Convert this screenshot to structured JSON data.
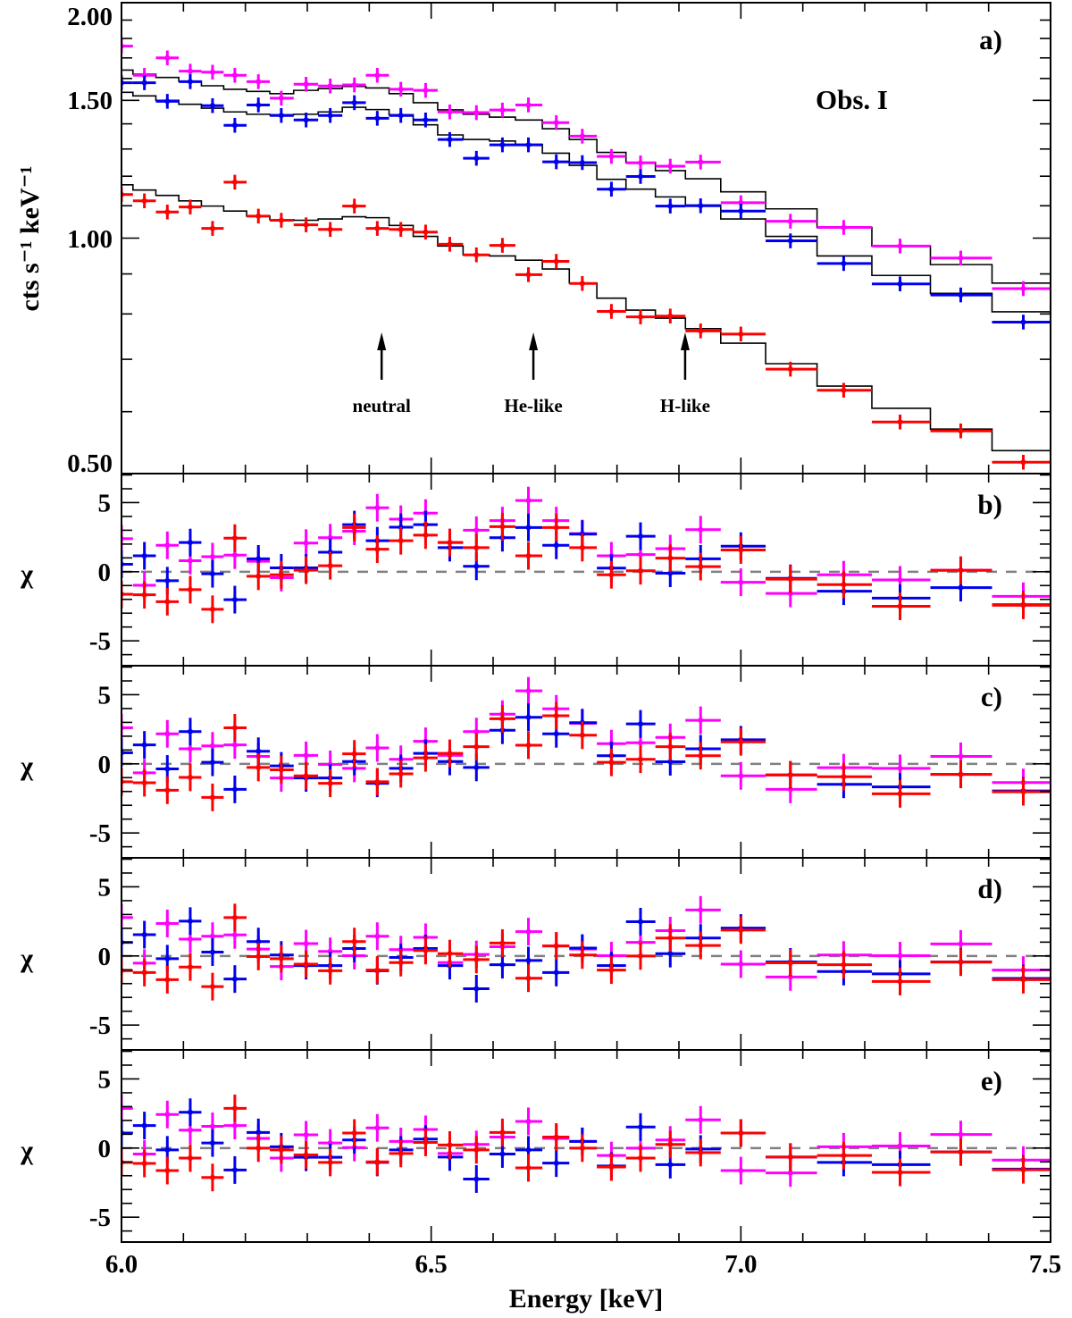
{
  "chart_data": {
    "type": "scatter",
    "title": "Obs. I",
    "xlabel": "Energy [keV]",
    "xlim": [
      6.0,
      7.5
    ],
    "xticks": [
      "6.0",
      "6.5",
      "7.0",
      "7.5"
    ],
    "energy": [
      6.0,
      6.037,
      6.074,
      6.111,
      6.147,
      6.183,
      6.221,
      6.258,
      6.298,
      6.337,
      6.376,
      6.413,
      6.451,
      6.491,
      6.53,
      6.573,
      6.615,
      6.657,
      6.702,
      6.744,
      6.791,
      6.838,
      6.886,
      6.935,
      7.0,
      7.08,
      7.166,
      7.257,
      7.355,
      7.456
    ],
    "series_colors": {
      "magenta": "#ff00ff",
      "blue": "#0000ee",
      "red": "#ff0000",
      "model": "#000000",
      "zero_line": "#808080"
    },
    "spectrum_panel": {
      "label": "a)",
      "ylabel": "cts s⁻¹ keV⁻¹",
      "yscale": "log",
      "ylim": [
        0.5,
        2.0
      ],
      "yticks": [
        "2.00",
        "1.50",
        "1.00",
        "0.50"
      ],
      "series": [
        {
          "name": "magenta",
          "values": [
            1.76,
            1.615,
            1.7,
            1.635,
            1.63,
            1.615,
            1.585,
            1.51,
            1.573,
            1.565,
            1.57,
            1.615,
            1.55,
            1.545,
            1.45,
            1.447,
            1.458,
            1.48,
            1.405,
            1.35,
            1.272,
            1.248,
            1.236,
            1.251,
            1.11,
            1.051,
            1.032,
            0.977,
            0.943,
            0.862
          ],
          "model": [
            1.64,
            1.62,
            1.605,
            1.587,
            1.566,
            1.55,
            1.54,
            1.53,
            1.545,
            1.553,
            1.563,
            1.556,
            1.53,
            1.49,
            1.459,
            1.44,
            1.428,
            1.416,
            1.38,
            1.337,
            1.287,
            1.25,
            1.22,
            1.191,
            1.146,
            1.09,
            1.032,
            0.977,
            0.925,
            0.876
          ]
        },
        {
          "name": "blue",
          "values": [
            1.58,
            1.58,
            1.496,
            1.585,
            1.477,
            1.394,
            1.48,
            1.435,
            1.416,
            1.435,
            1.49,
            1.423,
            1.435,
            1.416,
            1.337,
            1.265,
            1.316,
            1.316,
            1.252,
            1.249,
            1.155,
            1.199,
            1.099,
            1.1,
            1.083,
            0.992,
            0.928,
            0.874,
            0.846,
            0.781
          ],
          "model": [
            1.536,
            1.52,
            1.5,
            1.483,
            1.466,
            1.45,
            1.44,
            1.438,
            1.44,
            1.45,
            1.47,
            1.46,
            1.438,
            1.396,
            1.355,
            1.337,
            1.331,
            1.318,
            1.284,
            1.239,
            1.189,
            1.155,
            1.129,
            1.102,
            1.058,
            1.005,
            0.949,
            0.896,
            0.85,
            0.805
          ]
        },
        {
          "name": "red",
          "values": [
            1.137,
            1.116,
            1.08,
            1.096,
            1.029,
            1.179,
            1.067,
            1.054,
            1.04,
            1.026,
            1.099,
            1.029,
            1.026,
            1.018,
            0.982,
            0.952,
            0.979,
            0.898,
            0.934,
            0.875,
            0.806,
            0.793,
            0.795,
            0.761,
            0.754,
            0.68,
            0.639,
            0.582,
            0.567,
            0.517
          ],
          "model": [
            1.17,
            1.152,
            1.134,
            1.116,
            1.099,
            1.083,
            1.067,
            1.056,
            1.054,
            1.058,
            1.065,
            1.062,
            1.038,
            1.005,
            0.977,
            0.952,
            0.949,
            0.937,
            0.913,
            0.876,
            0.838,
            0.809,
            0.79,
            0.766,
            0.734,
            0.691,
            0.647,
            0.606,
            0.57,
            0.535
          ]
        }
      ],
      "annotations": [
        {
          "text": "neutral",
          "energy": 6.42
        },
        {
          "text": "He-like",
          "energy": 6.665
        },
        {
          "text": "H-like",
          "energy": 6.91
        }
      ]
    },
    "residual_panels": [
      {
        "label": "b)",
        "ylabel": "χ",
        "ylim": [
          -6.8,
          7.1
        ],
        "yticks": [
          "5",
          "0",
          "-5"
        ],
        "series": [
          {
            "name": "magenta",
            "values": [
              2.39,
              -0.98,
              1.91,
              0.8,
              1.09,
              1.2,
              0.76,
              -0.43,
              2.07,
              2.46,
              2.93,
              4.63,
              3.8,
              4.24,
              2.11,
              3.0,
              3.7,
              5.15,
              3.7,
              2.76,
              1.15,
              1.24,
              1.67,
              3.04,
              -0.76,
              -1.57,
              -0.22,
              -0.59,
              0.11,
              -1.78
            ]
          },
          {
            "name": "blue",
            "values": [
              0.54,
              1.15,
              -0.65,
              2.11,
              -0.15,
              -2.02,
              0.93,
              0.28,
              0.28,
              1.41,
              3.41,
              2.24,
              3.22,
              3.41,
              1.74,
              0.39,
              2.46,
              3.2,
              1.91,
              2.72,
              0.26,
              2.57,
              -0.11,
              0.93,
              1.85,
              -0.48,
              -1.41,
              -1.91,
              -1.15,
              -2.39
            ]
          },
          {
            "name": "red",
            "values": [
              -1.63,
              -1.67,
              -2.17,
              -1.3,
              -2.72,
              2.43,
              -0.33,
              -0.22,
              0.11,
              0.43,
              3.2,
              1.63,
              2.24,
              2.65,
              2.11,
              1.74,
              3.26,
              1.15,
              3.2,
              1.74,
              -0.22,
              0.07,
              0.98,
              0.37,
              1.57,
              -0.54,
              -0.93,
              -2.5,
              0.1,
              -2.43
            ]
          }
        ]
      },
      {
        "label": "c)",
        "ylabel": "χ",
        "ylim": [
          -6.8,
          7.1
        ],
        "yticks": [
          "5",
          "0",
          "-5"
        ],
        "series": [
          {
            "name": "magenta",
            "values": [
              2.61,
              -0.65,
              2.17,
              1.09,
              1.3,
              1.37,
              0.54,
              -1.02,
              0.61,
              -0.04,
              -0.33,
              1.15,
              0.33,
              1.63,
              0.61,
              2.33,
              3.59,
              5.28,
              3.98,
              2.93,
              1.46,
              1.52,
              1.91,
              3.15,
              -0.87,
              -1.85,
              -0.28,
              -0.33,
              0.54,
              -1.35
            ]
          },
          {
            "name": "blue",
            "values": [
              0.8,
              1.37,
              -0.37,
              2.33,
              0.11,
              -1.85,
              0.91,
              -0.15,
              -1.02,
              -1.02,
              0.17,
              -1.41,
              -0.33,
              0.76,
              0.17,
              -0.26,
              2.43,
              3.37,
              2.17,
              2.98,
              0.59,
              2.89,
              0.15,
              1.09,
              1.74,
              -0.8,
              -1.48,
              -1.67,
              -0.76,
              -1.96
            ]
          },
          {
            "name": "red",
            "values": [
              -1.3,
              -1.37,
              -1.91,
              -0.98,
              -2.43,
              2.61,
              -0.26,
              -0.43,
              -0.87,
              -1.41,
              0.72,
              -1.3,
              -0.72,
              0.43,
              0.76,
              1.24,
              3.26,
              1.35,
              3.48,
              2.07,
              0.11,
              0.33,
              1.24,
              0.59,
              1.59,
              -0.8,
              -0.93,
              -2.17,
              -0.76,
              -2.02
            ]
          }
        ]
      },
      {
        "label": "d)",
        "ylabel": "χ",
        "ylim": [
          -6.8,
          7.1
        ],
        "yticks": [
          "5",
          "0",
          "-5"
        ],
        "series": [
          {
            "name": "magenta",
            "values": [
              2.78,
              -0.52,
              2.35,
              1.22,
              1.43,
              1.52,
              0.5,
              -0.76,
              0.89,
              0.33,
              0.02,
              1.43,
              0.46,
              1.35,
              -0.48,
              0.11,
              0.67,
              1.76,
              0.72,
              0.5,
              0.02,
              0.98,
              1.83,
              3.33,
              -0.59,
              -1.52,
              0.07,
              0.02,
              0.87,
              -1.02
            ]
          },
          {
            "name": "blue",
            "values": [
              0.98,
              1.54,
              -0.2,
              2.52,
              0.28,
              -1.67,
              1.04,
              0.07,
              -0.7,
              -0.7,
              0.54,
              -1.07,
              -0.11,
              0.54,
              -0.7,
              -2.37,
              -0.63,
              -0.33,
              -1.2,
              0.57,
              -0.7,
              2.48,
              0.17,
              1.3,
              2.02,
              -0.43,
              -1.13,
              -1.3,
              -0.43,
              -1.63
            ]
          },
          {
            "name": "red",
            "values": [
              -1.07,
              -1.2,
              -1.72,
              -0.8,
              -2.22,
              2.78,
              -0.04,
              -0.2,
              -0.59,
              -1.07,
              1.04,
              -1.02,
              -0.48,
              0.39,
              0.17,
              -0.26,
              0.93,
              -1.61,
              0.72,
              0.07,
              -1.02,
              0,
              1.3,
              0.76,
              1.87,
              -0.5,
              -0.63,
              -1.85,
              -0.45,
              -1.72
            ]
          }
        ]
      },
      {
        "label": "e)",
        "ylabel": "χ",
        "ylim": [
          -6.8,
          7.1
        ],
        "yticks": [
          "5",
          "0",
          "-5"
        ],
        "series": [
          {
            "name": "magenta",
            "values": [
              2.87,
              -0.43,
              2.43,
              1.3,
              1.57,
              1.63,
              0.7,
              -0.72,
              0.96,
              0.37,
              0.04,
              1.46,
              0.48,
              1.35,
              -0.39,
              0.26,
              0.8,
              1.93,
              0.7,
              0.48,
              -0.54,
              0,
              0.59,
              2.04,
              -1.63,
              -1.8,
              0.09,
              0.15,
              0.98,
              -0.87
            ]
          },
          {
            "name": "blue",
            "values": [
              1.09,
              1.63,
              -0.13,
              2.59,
              0.37,
              -1.59,
              1.13,
              0.09,
              -0.67,
              -0.67,
              0.59,
              -1.04,
              -0.13,
              0.65,
              -0.65,
              -2.24,
              -0.43,
              -0.13,
              -1.09,
              0.48,
              -1.3,
              1.52,
              -1.2,
              -0.07,
              1.09,
              -0.65,
              -1.04,
              -1.2,
              -0.28,
              -1.52
            ]
          },
          {
            "name": "red",
            "values": [
              -1.04,
              -1.11,
              -1.63,
              -0.72,
              -2.13,
              2.87,
              0,
              -0.13,
              -0.5,
              -1.04,
              1.09,
              -1.0,
              -0.39,
              0.41,
              0.22,
              -0.13,
              1.13,
              -1.43,
              0.8,
              0,
              -1.37,
              -0.72,
              0.26,
              -0.33,
              1.09,
              -0.65,
              -0.54,
              -1.76,
              -0.28,
              -1.57
            ]
          }
        ]
      }
    ]
  }
}
